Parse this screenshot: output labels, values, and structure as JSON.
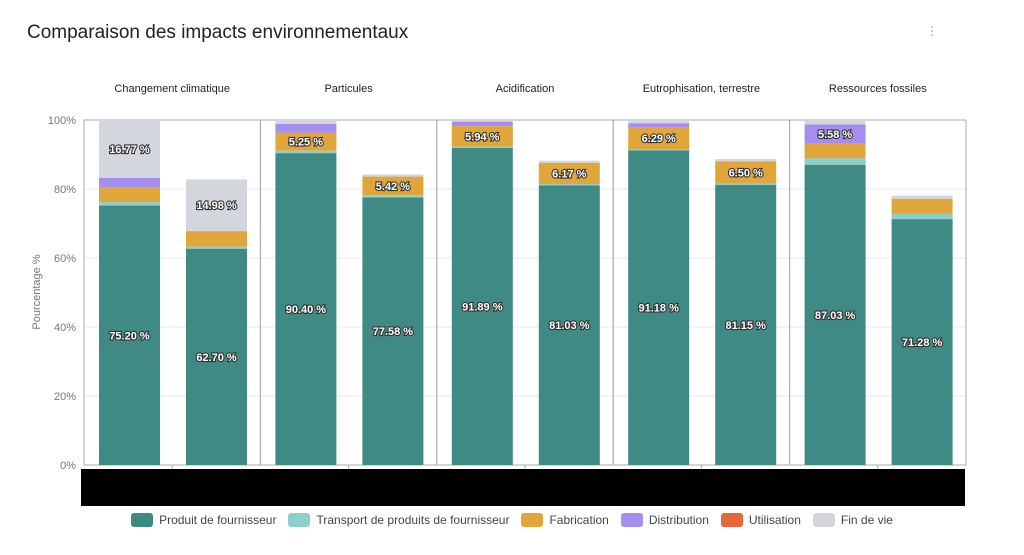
{
  "title": "Comparaison des impacts environnementaux",
  "menu_icon": "vertical-dots-icon",
  "chart_data": {
    "type": "bar",
    "stacked": true,
    "title": "Comparaison des impacts environnementaux",
    "ylabel": "Pourcentage %",
    "ylim": [
      0,
      100
    ],
    "yticks": [
      "0%",
      "20%",
      "40%",
      "60%",
      "80%",
      "100%"
    ],
    "ytick_values": [
      0,
      20,
      40,
      60,
      80,
      100
    ],
    "grid": true,
    "legend_position": "bottom",
    "panels": [
      {
        "label": "Changement climatique"
      },
      {
        "label": "Particules"
      },
      {
        "label": "Acidification"
      },
      {
        "label": "Eutrophisation, terrestre"
      },
      {
        "label": "Ressources fossiles"
      }
    ],
    "series": [
      {
        "name": "Produit de fournisseur",
        "color": "#3f8a84"
      },
      {
        "name": "Transport de produits de fournisseur",
        "color": "#8ccfcb"
      },
      {
        "name": "Fabrication",
        "color": "#e0a63a"
      },
      {
        "name": "Distribution",
        "color": "#a58ef0"
      },
      {
        "name": "Utilisation",
        "color": "#e8673a"
      },
      {
        "name": "Fin de vie",
        "color": "#d3d6dc"
      }
    ],
    "bars": [
      {
        "panel": 0,
        "values": [
          75.2,
          1.0,
          4.2,
          2.83,
          0,
          16.77
        ],
        "labels": {
          "0": "75.20 %",
          "5": "16.77 %"
        }
      },
      {
        "panel": 0,
        "values": [
          62.7,
          0.6,
          4.5,
          0,
          0,
          14.98
        ],
        "labels": {
          "0": "62.70 %",
          "5": "14.98 %"
        }
      },
      {
        "panel": 1,
        "values": [
          90.4,
          0.7,
          5.25,
          2.5,
          0,
          1.15
        ],
        "labels": {
          "0": "90.40 %",
          "2": "5.25 %"
        }
      },
      {
        "panel": 1,
        "values": [
          77.58,
          0.6,
          5.42,
          0,
          0,
          0.6
        ],
        "labels": {
          "0": "77.58 %",
          "2": "5.42 %"
        }
      },
      {
        "panel": 2,
        "values": [
          91.89,
          0.4,
          5.94,
          1.3,
          0,
          0.47
        ],
        "labels": {
          "0": "91.89 %",
          "2": "5.94 %"
        }
      },
      {
        "panel": 2,
        "values": [
          81.03,
          0.4,
          6.17,
          0,
          0,
          0.6
        ],
        "labels": {
          "0": "81.03 %",
          "2": "6.17 %"
        }
      },
      {
        "panel": 3,
        "values": [
          91.18,
          0.4,
          6.29,
          1.2,
          0,
          0.93
        ],
        "labels": {
          "0": "91.18 %",
          "2": "6.29 %"
        }
      },
      {
        "panel": 3,
        "values": [
          81.15,
          0.4,
          6.5,
          0,
          0,
          0.6
        ],
        "labels": {
          "0": "81.15 %",
          "2": "6.50 %"
        }
      },
      {
        "panel": 4,
        "values": [
          87.03,
          1.9,
          4.2,
          5.58,
          0,
          1.29
        ],
        "labels": {
          "0": "87.03 %",
          "3": "5.58 %"
        }
      },
      {
        "panel": 4,
        "values": [
          71.28,
          1.5,
          4.4,
          0,
          0,
          0.9
        ],
        "labels": {
          "0": "71.28 %"
        }
      }
    ]
  }
}
